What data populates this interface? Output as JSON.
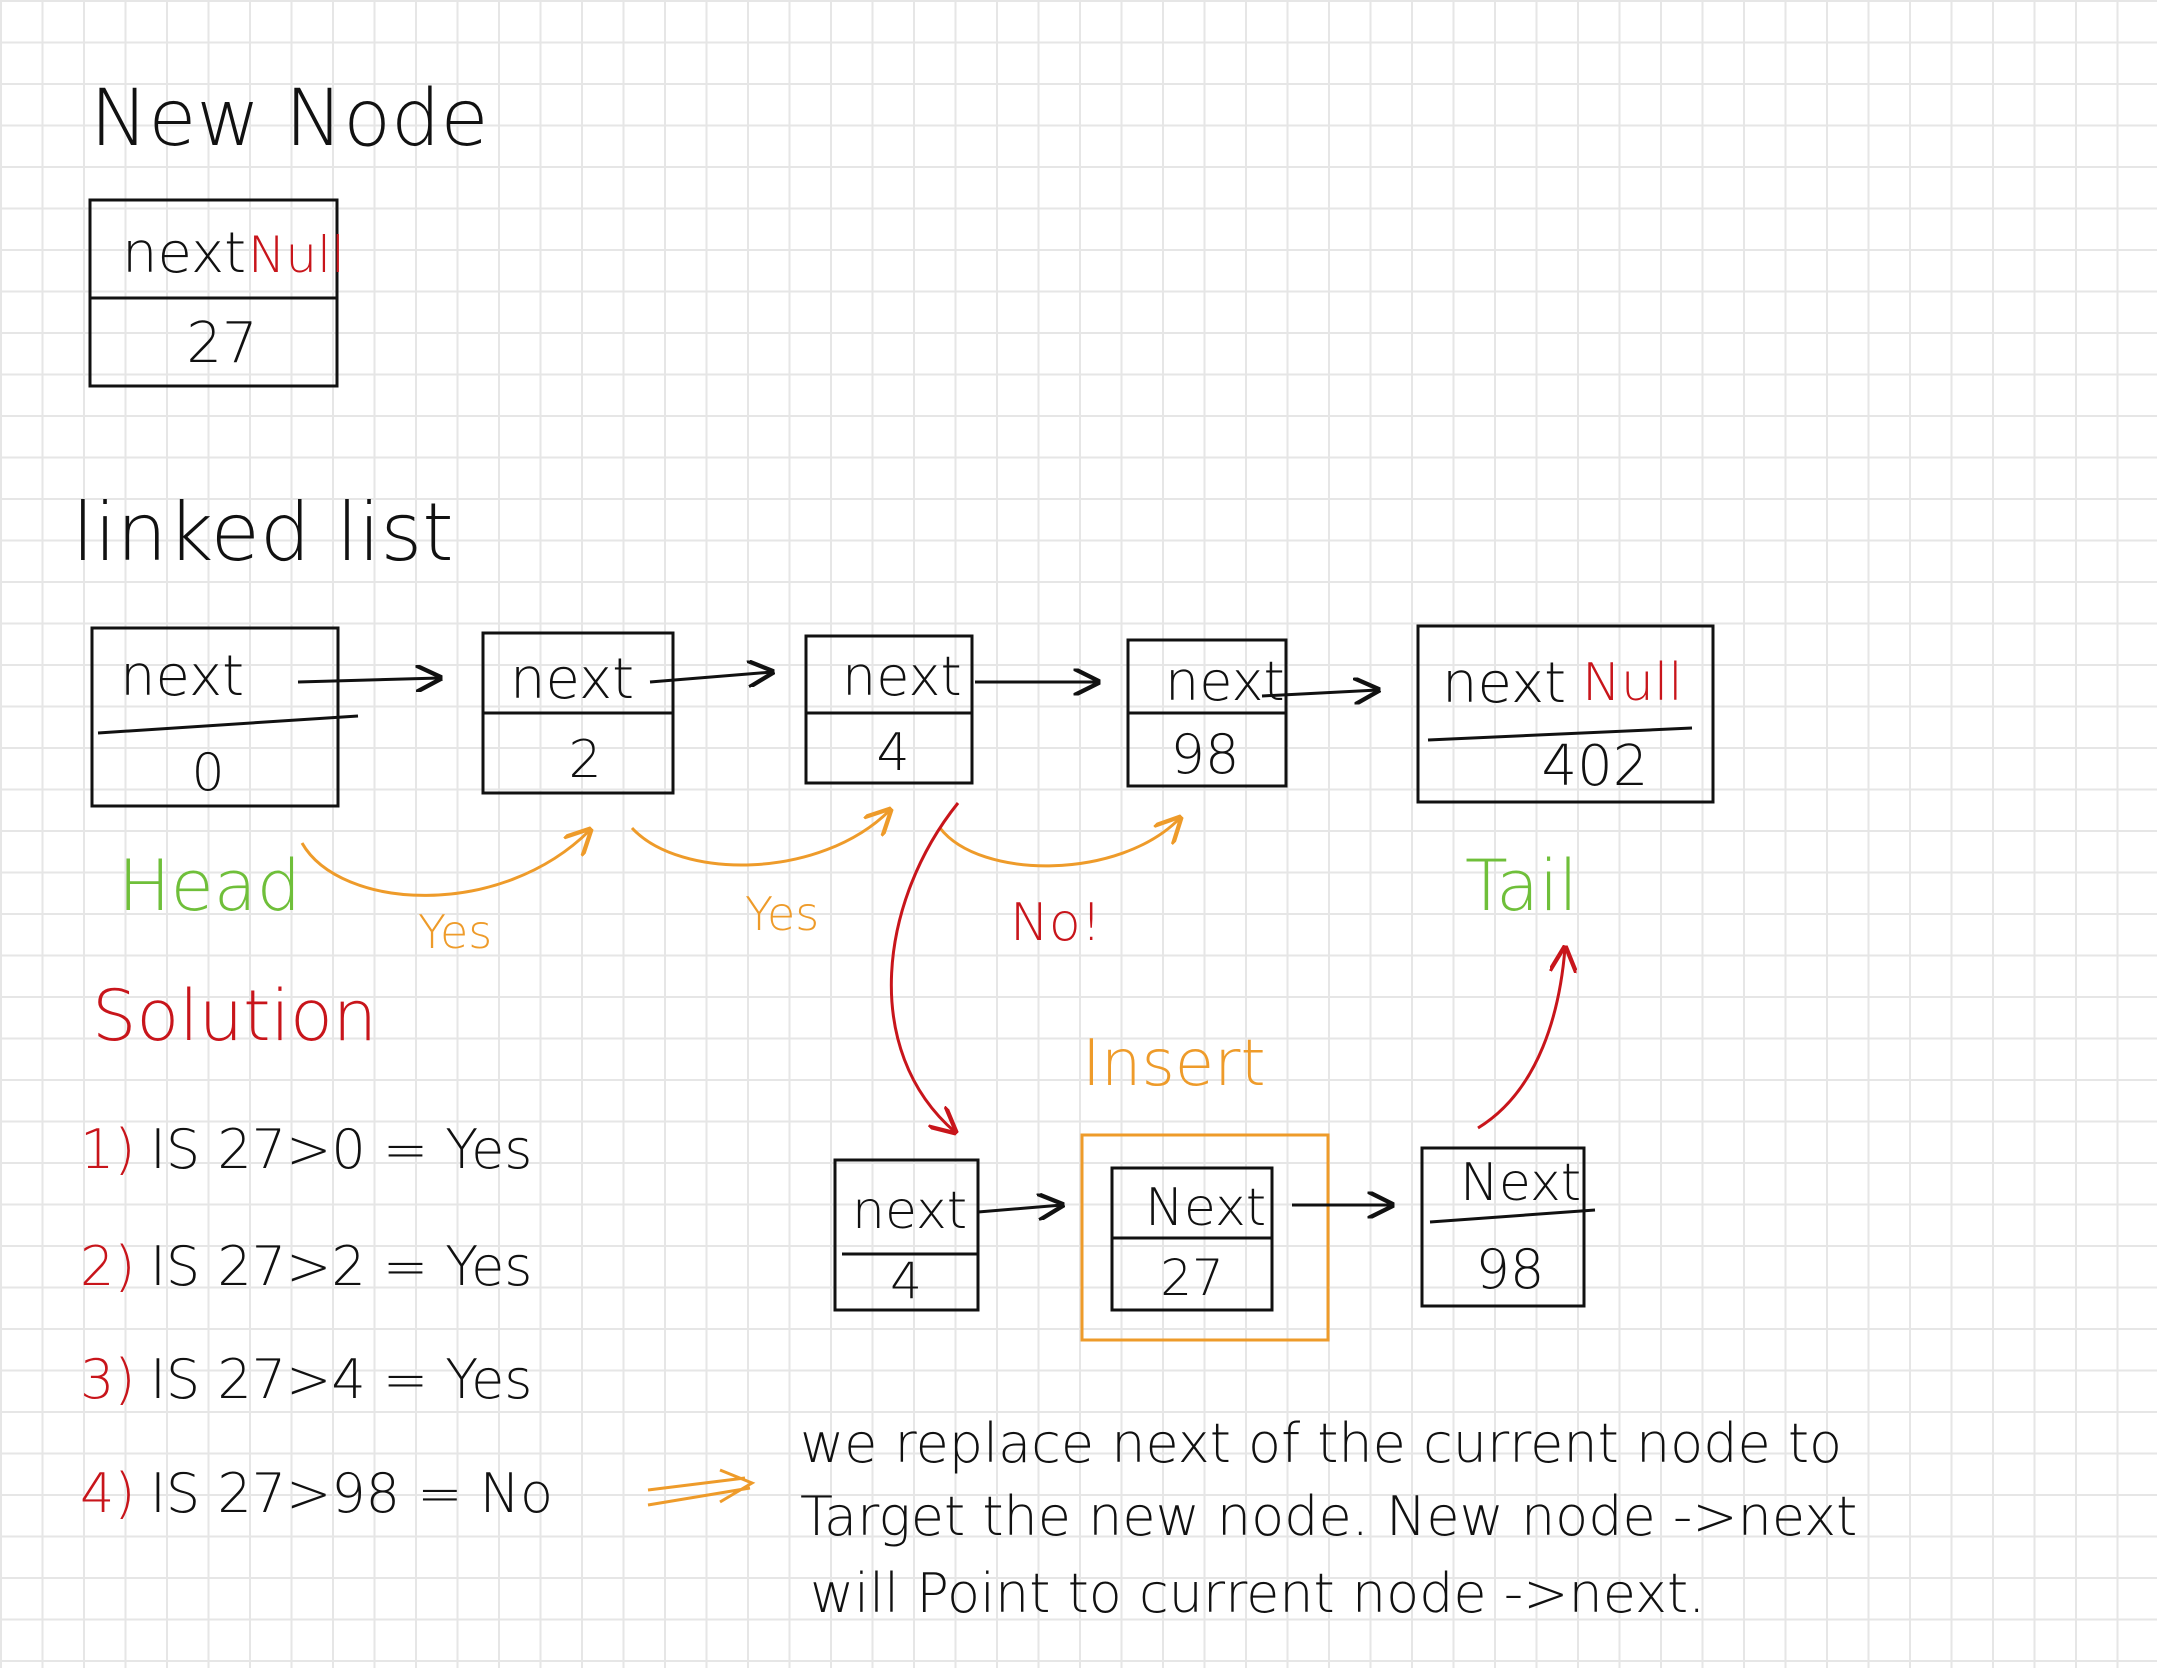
{
  "colors": {
    "ink": "#111111",
    "red": "#c8151b",
    "green": "#6fbf3a",
    "orange": "#ee9b2a"
  },
  "new_node": {
    "title": "New Node",
    "next_label": "next",
    "next_value": "Null",
    "value": "27"
  },
  "linked_list": {
    "title": "linked list",
    "nodes": [
      {
        "next_label": "next",
        "value": "0"
      },
      {
        "next_label": "next",
        "value": "2"
      },
      {
        "next_label": "next",
        "value": "4"
      },
      {
        "next_label": "next",
        "value": "98"
      },
      {
        "next_label": "next",
        "next_value": "Null",
        "value": "402"
      }
    ],
    "head_label": "Head",
    "tail_label": "Tail",
    "check_labels": [
      "Yes",
      "Yes",
      "No!"
    ]
  },
  "solution": {
    "title": "Solution",
    "steps": [
      {
        "num": "1)",
        "text": "IS 27>0 = Yes"
      },
      {
        "num": "2)",
        "text": "IS 27>2 = Yes"
      },
      {
        "num": "3)",
        "text": "IS 27>4 = Yes"
      },
      {
        "num": "4)",
        "text": "IS 27>98 = No"
      }
    ]
  },
  "insert": {
    "label": "Insert",
    "nodes": [
      {
        "next_label": "next",
        "value": "4"
      },
      {
        "next_label": "Next",
        "value": "27"
      },
      {
        "next_label": "Next",
        "value": "98"
      }
    ]
  },
  "explanation": [
    "we replace next of the current node to",
    "Target the new node. New node ->next",
    "will Point to current node ->next."
  ]
}
